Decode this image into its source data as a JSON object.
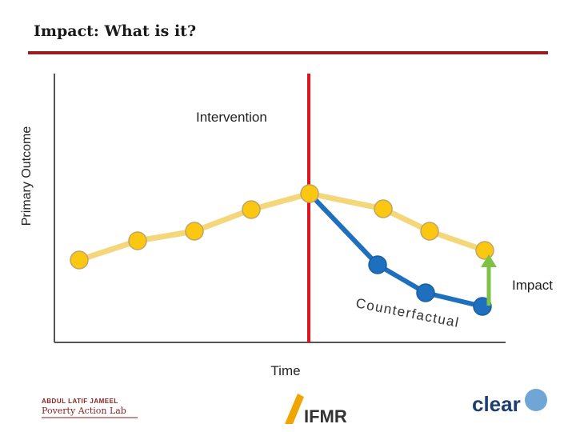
{
  "header": {
    "title": "Impact: What is it?"
  },
  "diagram": {
    "y_axis_label": "Primary Outcome",
    "x_axis_label": "Time",
    "intervention_label": "Intervention",
    "impact_label": "Impact",
    "counterfactual_label": "Counterfactual"
  },
  "footer": {
    "logo_1_top": "ABDUL LATIF JAMEEL",
    "logo_1_bottom": "Poverty Action Lab",
    "logo_2": "IFMR",
    "logo_3": "clear"
  }
}
